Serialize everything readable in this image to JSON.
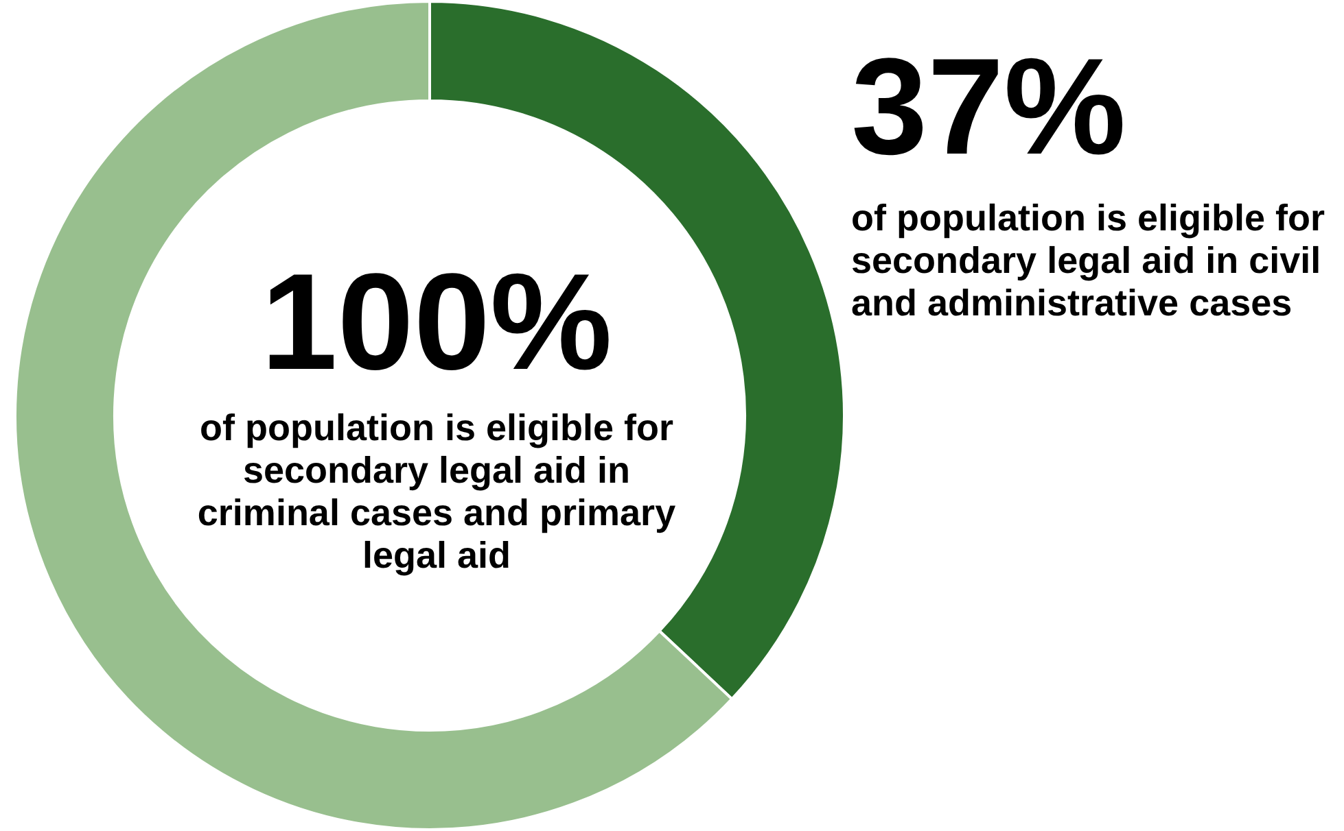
{
  "chart_data": {
    "type": "donut",
    "categories": [
      null,
      null
    ],
    "values": [
      37,
      63
    ],
    "colors": [
      "#2a6e2c",
      "#98bf8e"
    ],
    "value_labels": [
      "37%",
      null
    ],
    "annotations": [
      "of population is eligible for secondary legal aid in civil and administrative cases",
      "100%",
      "of population is eligible for secondary legal aid in criminal cases and primary legal aid"
    ],
    "legend": false
  }
}
